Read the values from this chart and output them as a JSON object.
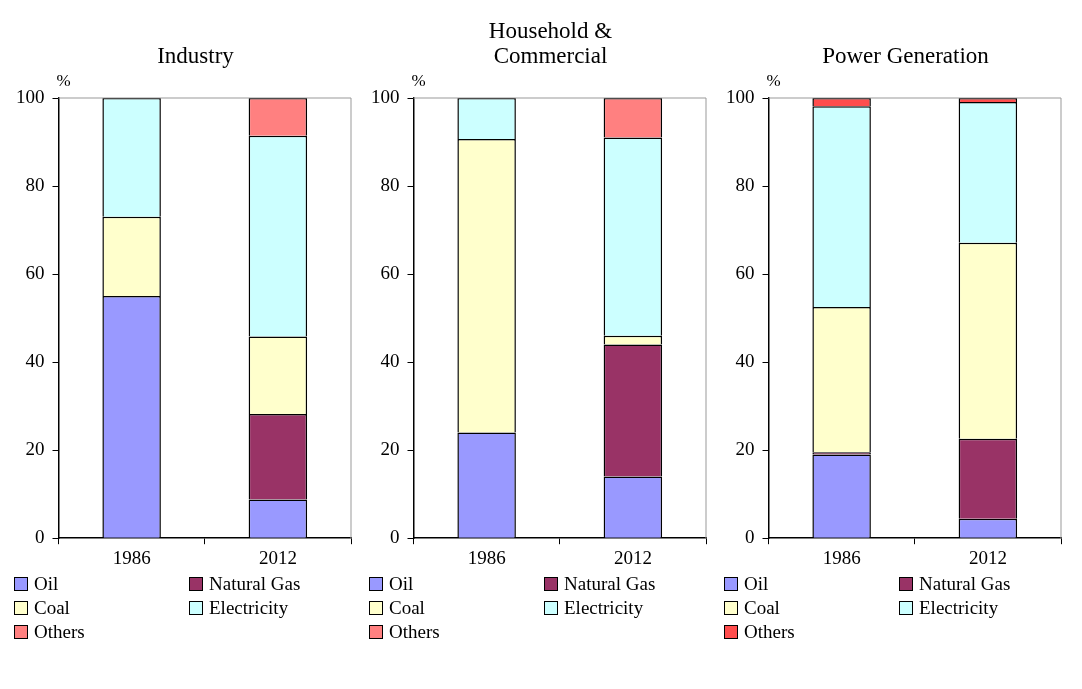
{
  "chart_data": [
    {
      "type": "bar",
      "title": "Industry",
      "ylabel": "%",
      "categories": [
        "1986",
        "2012"
      ],
      "stacked": true,
      "ylim": [
        0,
        100
      ],
      "yticks": [
        0,
        20,
        40,
        60,
        80,
        100
      ],
      "legend": "bottom",
      "series": [
        {
          "name": "Oil",
          "color": "#9999ff",
          "values": [
            55,
            8.8
          ]
        },
        {
          "name": "Natural Gas",
          "color": "#993366",
          "values": [
            0,
            19.4
          ]
        },
        {
          "name": "Coal",
          "color": "#ffffcc",
          "values": [
            18,
            17.6
          ]
        },
        {
          "name": "Electricity",
          "color": "#ccffff",
          "values": [
            27,
            45.6
          ]
        },
        {
          "name": "Others",
          "color": "#ff8080",
          "values": [
            0,
            8.6
          ]
        }
      ]
    },
    {
      "type": "bar",
      "title": "Household & Commercial",
      "ylabel": "%",
      "categories": [
        "1986",
        "2012"
      ],
      "stacked": true,
      "ylim": [
        0,
        100
      ],
      "yticks": [
        0,
        20,
        40,
        60,
        80,
        100
      ],
      "legend": "bottom",
      "series": [
        {
          "name": "Oil",
          "color": "#9999ff",
          "values": [
            24,
            14
          ]
        },
        {
          "name": "Natural Gas",
          "color": "#993366",
          "values": [
            0,
            30
          ]
        },
        {
          "name": "Coal",
          "color": "#ffffcc",
          "values": [
            66.7,
            2
          ]
        },
        {
          "name": "Electricity",
          "color": "#ccffff",
          "values": [
            9.3,
            45
          ]
        },
        {
          "name": "Others",
          "color": "#ff8080",
          "values": [
            0,
            9
          ]
        }
      ]
    },
    {
      "type": "bar",
      "title": "Power Generation",
      "ylabel": "%",
      "categories": [
        "1986",
        "2012"
      ],
      "stacked": true,
      "ylim": [
        0,
        100
      ],
      "yticks": [
        0,
        20,
        40,
        60,
        80,
        100
      ],
      "legend": "bottom",
      "series": [
        {
          "name": "Oil",
          "color": "#9999ff",
          "values": [
            19,
            4.4
          ]
        },
        {
          "name": "Natural Gas",
          "color": "#993366",
          "values": [
            0.5,
            18.2
          ]
        },
        {
          "name": "Coal",
          "color": "#ffffcc",
          "values": [
            33,
            44.5
          ]
        },
        {
          "name": "Electricity",
          "color": "#ccffff",
          "values": [
            45.6,
            32
          ]
        },
        {
          "name": "Others",
          "color": "#ff4d4d",
          "values": [
            1.9,
            0.9
          ]
        }
      ]
    }
  ]
}
